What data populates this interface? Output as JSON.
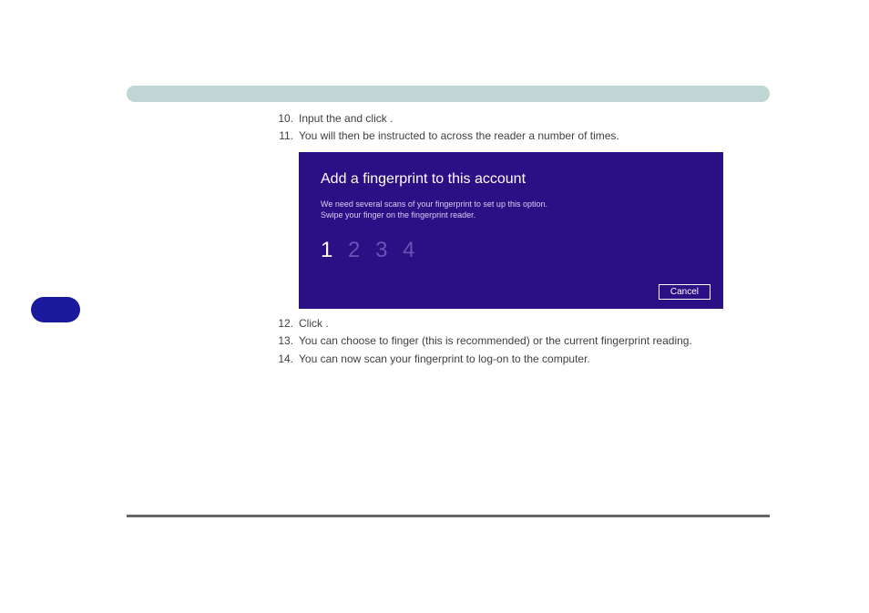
{
  "colors": {
    "header_bar": "#c0d6d4",
    "side_pill": "#1a1a9c",
    "text": "#404040",
    "dialog_bg": "#2b0f84",
    "dialog_title": "#ffffff",
    "dialog_body": "#d8d0f2",
    "counter_active": "#ffffff",
    "counter_inactive": "#6a52b8",
    "footer_rule": "#666666"
  },
  "steps": {
    "s10": {
      "num": "10.",
      "t1": "Input the ",
      "t2": " and click ",
      "t3": "."
    },
    "s11": {
      "num": "11.",
      "t1": "You will then be instructed to ",
      "t2": " across the reader a number of times."
    },
    "s12": {
      "num": "12.",
      "t1": "Click ",
      "t2": "."
    },
    "s13": {
      "num": "13.",
      "t1": "You can choose to ",
      "t2": " finger (this is recommended) or ",
      "t3": " the current fingerprint reading."
    },
    "s14": {
      "num": "14.",
      "t1": "You can now scan your fingerprint to log-on to the computer."
    }
  },
  "dialog": {
    "title": "Add a fingerprint to this account",
    "line1": "We need several scans of your fingerprint to set up this option.",
    "line2": "Swipe your finger on the fingerprint reader.",
    "c1": "1",
    "c2": "2",
    "c3": "3",
    "c4": "4",
    "cancel": "Cancel"
  }
}
